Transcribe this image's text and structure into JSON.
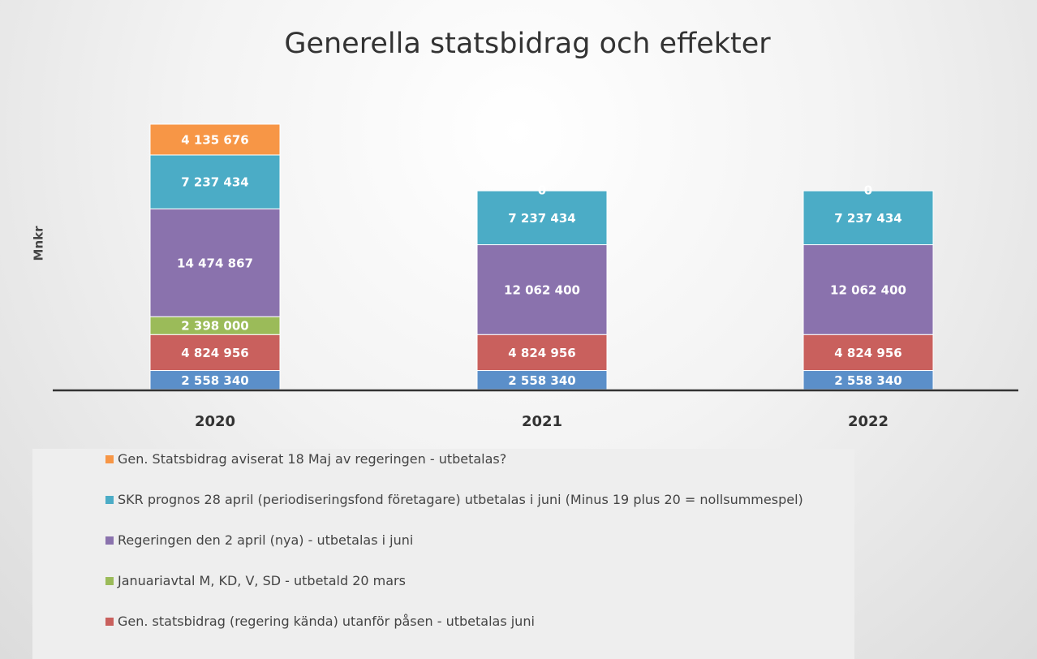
{
  "chart_data": {
    "type": "stacked_bar",
    "title": "Generella statsbidrag och effekter",
    "y_label": "Mnkr",
    "categories": [
      "2020",
      "2021",
      "2022"
    ],
    "series": [
      {
        "color": "#5b8fc9",
        "values": [
          2558340,
          2558340,
          2558340
        ],
        "value_labels": [
          "2 558 340",
          "2 558 340",
          "2 558 340"
        ]
      },
      {
        "name": "Gen. statsbidrag (regering kända) utanför påsen - utbetalas juni",
        "color": "#c9605d",
        "values": [
          4824956,
          4824956,
          4824956
        ],
        "value_labels": [
          "4 824 956",
          "4 824 956",
          "4 824 956"
        ]
      },
      {
        "name": "Januariavtal M, KD, V, SD - utbetald 20 mars",
        "color": "#9bbb59",
        "values": [
          2398000,
          null,
          null
        ],
        "value_labels": [
          "2 398 000",
          null,
          null
        ]
      },
      {
        "name": "Regeringen den 2 april (nya) - utbetalas i juni",
        "color": "#8a72ad",
        "values": [
          14474867,
          12062400,
          12062400
        ],
        "value_labels": [
          "14 474 867",
          "12 062 400",
          "12 062 400"
        ]
      },
      {
        "name": "SKR prognos 28 april (periodiseringsfond företagare) utbetalas i juni (Minus 19 plus 20 = nollsummespel)",
        "color": "#4bacc6",
        "values": [
          7237434,
          7237434,
          7237434
        ],
        "value_labels": [
          "7 237 434",
          "7 237 434",
          "7 237 434"
        ]
      },
      {
        "name": "Gen. Statsbidrag aviserat 18 Maj av regeringen - utbetalas?",
        "color": "#f79646",
        "values": [
          4135676,
          0,
          0
        ],
        "value_labels": [
          "4 135 676",
          null,
          null
        ]
      }
    ]
  }
}
